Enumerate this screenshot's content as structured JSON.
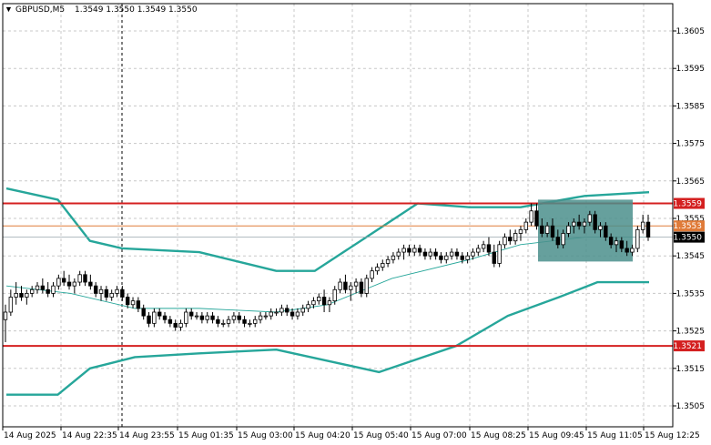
{
  "header": {
    "symbol": "GBPUSD,M5",
    "ohlc": "1.3549 1.3550 1.3549 1.3550",
    "menu_icon": "triangle-down-icon"
  },
  "colors": {
    "background": "#ffffff",
    "grid": "#c8c8c8",
    "up_candle": "#ffffff",
    "down_candle": "#000000",
    "bollinger": "#26a69a",
    "level": "#d42020",
    "orange_level": "#e07b39",
    "box": "#4b8f8c"
  },
  "chart_data": {
    "type": "candlestick",
    "symbol": "GBPUSD",
    "timeframe": "M5",
    "ylim": [
      1.35,
      1.361
    ],
    "y_ticks": [
      "1.3605",
      "1.3595",
      "1.3585",
      "1.3575",
      "1.3565",
      "1.3555",
      "1.3545",
      "1.3535",
      "1.3525",
      "1.3515",
      "1.3505"
    ],
    "x_ticks": [
      "14 Aug 2025",
      "14 Aug 22:35",
      "14 Aug 23:55",
      "15 Aug 01:35",
      "15 Aug 03:00",
      "15 Aug 04:20",
      "15 Aug 05:40",
      "15 Aug 07:00",
      "15 Aug 08:25",
      "15 Aug 09:45",
      "15 Aug 11:05",
      "15 Aug 12:25"
    ],
    "grid": true,
    "horizontal_levels": [
      {
        "price": 1.3559,
        "label": "1.3559",
        "style": "red"
      },
      {
        "price": 1.3553,
        "label": "1.3553",
        "style": "orange"
      },
      {
        "price": 1.3521,
        "label": "1.3521",
        "style": "red"
      }
    ],
    "current_price": {
      "price": 1.355,
      "label": "1.3550"
    },
    "ohlc_approx": [
      [
        1.3528,
        1.3532,
        1.3522,
        1.353
      ],
      [
        1.353,
        1.3536,
        1.3529,
        1.3534
      ],
      [
        1.3534,
        1.3538,
        1.3532,
        1.3535
      ],
      [
        1.3535,
        1.3537,
        1.3533,
        1.3534
      ],
      [
        1.3534,
        1.3536,
        1.3532,
        1.3535
      ],
      [
        1.3535,
        1.3537,
        1.3534,
        1.3536
      ],
      [
        1.3536,
        1.3538,
        1.3535,
        1.3537
      ],
      [
        1.3537,
        1.3539,
        1.3535,
        1.3536
      ],
      [
        1.3536,
        1.3538,
        1.3534,
        1.3535
      ],
      [
        1.3535,
        1.3538,
        1.3534,
        1.3537
      ],
      [
        1.3537,
        1.354,
        1.3536,
        1.3539
      ],
      [
        1.3539,
        1.3541,
        1.3537,
        1.3538
      ],
      [
        1.3538,
        1.354,
        1.3536,
        1.3537
      ],
      [
        1.3537,
        1.3539,
        1.3535,
        1.3538
      ],
      [
        1.3538,
        1.3541,
        1.3537,
        1.354
      ],
      [
        1.354,
        1.3541,
        1.3537,
        1.3538
      ],
      [
        1.3538,
        1.354,
        1.3536,
        1.3537
      ],
      [
        1.3537,
        1.3538,
        1.3534,
        1.3535
      ],
      [
        1.3535,
        1.3537,
        1.3533,
        1.3536
      ],
      [
        1.3536,
        1.3537,
        1.3533,
        1.3534
      ],
      [
        1.3534,
        1.3536,
        1.3533,
        1.3535
      ],
      [
        1.3535,
        1.3537,
        1.3534,
        1.3536
      ],
      [
        1.3536,
        1.3537,
        1.3533,
        1.3534
      ],
      [
        1.3534,
        1.3535,
        1.3531,
        1.3532
      ],
      [
        1.3532,
        1.3534,
        1.3531,
        1.3533
      ],
      [
        1.3533,
        1.3534,
        1.353,
        1.3531
      ],
      [
        1.3531,
        1.3532,
        1.3528,
        1.3529
      ],
      [
        1.3529,
        1.353,
        1.3526,
        1.3527
      ],
      [
        1.3527,
        1.3531,
        1.3526,
        1.353
      ],
      [
        1.353,
        1.3531,
        1.3528,
        1.3529
      ],
      [
        1.3529,
        1.353,
        1.3527,
        1.3528
      ],
      [
        1.3528,
        1.3529,
        1.3526,
        1.3527
      ],
      [
        1.3527,
        1.3528,
        1.3525,
        1.3526
      ],
      [
        1.3526,
        1.3528,
        1.3525,
        1.3527
      ],
      [
        1.3527,
        1.3531,
        1.3526,
        1.353
      ],
      [
        1.353,
        1.3531,
        1.3528,
        1.3529
      ],
      [
        1.3529,
        1.353,
        1.3528,
        1.3529
      ],
      [
        1.3529,
        1.353,
        1.3527,
        1.3528
      ],
      [
        1.3528,
        1.353,
        1.3527,
        1.3529
      ],
      [
        1.3529,
        1.353,
        1.3527,
        1.3528
      ],
      [
        1.3528,
        1.3529,
        1.3526,
        1.3527
      ],
      [
        1.3527,
        1.3528,
        1.3526,
        1.3527
      ],
      [
        1.3527,
        1.3529,
        1.3526,
        1.3528
      ],
      [
        1.3528,
        1.353,
        1.3527,
        1.3529
      ],
      [
        1.3529,
        1.353,
        1.3527,
        1.3528
      ],
      [
        1.3528,
        1.3529,
        1.3526,
        1.3527
      ],
      [
        1.3527,
        1.3528,
        1.3526,
        1.3527
      ],
      [
        1.3527,
        1.3529,
        1.3526,
        1.3528
      ],
      [
        1.3528,
        1.353,
        1.3527,
        1.3529
      ],
      [
        1.3529,
        1.353,
        1.3528,
        1.3529
      ],
      [
        1.3529,
        1.3531,
        1.3528,
        1.353
      ],
      [
        1.353,
        1.3531,
        1.3529,
        1.353
      ],
      [
        1.353,
        1.3532,
        1.3529,
        1.3531
      ],
      [
        1.3531,
        1.3532,
        1.3529,
        1.353
      ],
      [
        1.353,
        1.3531,
        1.3528,
        1.3529
      ],
      [
        1.3529,
        1.3531,
        1.3528,
        1.353
      ],
      [
        1.353,
        1.3532,
        1.3529,
        1.3531
      ],
      [
        1.3531,
        1.3533,
        1.353,
        1.3532
      ],
      [
        1.3532,
        1.3534,
        1.3531,
        1.3533
      ],
      [
        1.3533,
        1.3535,
        1.3532,
        1.3534
      ],
      [
        1.3534,
        1.3536,
        1.353,
        1.3532
      ],
      [
        1.3532,
        1.3534,
        1.353,
        1.3533
      ],
      [
        1.3533,
        1.3537,
        1.3532,
        1.3536
      ],
      [
        1.3536,
        1.3539,
        1.3535,
        1.3538
      ],
      [
        1.3538,
        1.354,
        1.3535,
        1.3536
      ],
      [
        1.3536,
        1.3538,
        1.3533,
        1.3537
      ],
      [
        1.3537,
        1.3539,
        1.3535,
        1.3538
      ],
      [
        1.3538,
        1.3539,
        1.3534,
        1.3535
      ],
      [
        1.3535,
        1.354,
        1.3534,
        1.3539
      ],
      [
        1.3539,
        1.3542,
        1.3538,
        1.3541
      ],
      [
        1.3541,
        1.3543,
        1.354,
        1.3542
      ],
      [
        1.3542,
        1.3544,
        1.3541,
        1.3543
      ],
      [
        1.3543,
        1.3545,
        1.3542,
        1.3544
      ],
      [
        1.3544,
        1.3546,
        1.3543,
        1.3545
      ],
      [
        1.3545,
        1.3547,
        1.3544,
        1.3546
      ],
      [
        1.3546,
        1.3548,
        1.3544,
        1.3547
      ],
      [
        1.3547,
        1.3548,
        1.3545,
        1.3546
      ],
      [
        1.3546,
        1.3548,
        1.3545,
        1.3547
      ],
      [
        1.3547,
        1.3548,
        1.3545,
        1.3546
      ],
      [
        1.3546,
        1.3547,
        1.3544,
        1.3545
      ],
      [
        1.3545,
        1.3547,
        1.3544,
        1.3546
      ],
      [
        1.3546,
        1.3547,
        1.3544,
        1.3545
      ],
      [
        1.3545,
        1.3546,
        1.3543,
        1.3544
      ],
      [
        1.3544,
        1.3546,
        1.3543,
        1.3545
      ],
      [
        1.3545,
        1.3547,
        1.3544,
        1.3546
      ],
      [
        1.3546,
        1.3547,
        1.3544,
        1.3545
      ],
      [
        1.3545,
        1.3546,
        1.3543,
        1.3544
      ],
      [
        1.3544,
        1.3546,
        1.3543,
        1.3545
      ],
      [
        1.3545,
        1.3547,
        1.3544,
        1.3546
      ],
      [
        1.3546,
        1.3548,
        1.3545,
        1.3547
      ],
      [
        1.3547,
        1.3549,
        1.3546,
        1.3548
      ],
      [
        1.3548,
        1.355,
        1.3545,
        1.3546
      ],
      [
        1.3546,
        1.3548,
        1.3542,
        1.3543
      ],
      [
        1.3543,
        1.3549,
        1.3542,
        1.3548
      ],
      [
        1.3548,
        1.3551,
        1.3547,
        1.355
      ],
      [
        1.355,
        1.3552,
        1.3548,
        1.3549
      ],
      [
        1.3549,
        1.3552,
        1.3548,
        1.3551
      ],
      [
        1.3551,
        1.3553,
        1.3549,
        1.3552
      ],
      [
        1.3552,
        1.3555,
        1.3551,
        1.3554
      ],
      [
        1.3554,
        1.3559,
        1.3553,
        1.3557
      ],
      [
        1.3557,
        1.3559,
        1.3552,
        1.3553
      ],
      [
        1.3553,
        1.3555,
        1.355,
        1.3551
      ],
      [
        1.3551,
        1.3554,
        1.355,
        1.3553
      ],
      [
        1.3553,
        1.3555,
        1.3549,
        1.355
      ],
      [
        1.355,
        1.3552,
        1.3547,
        1.3548
      ],
      [
        1.3548,
        1.3552,
        1.3547,
        1.3551
      ],
      [
        1.3551,
        1.3554,
        1.355,
        1.3553
      ],
      [
        1.3553,
        1.3555,
        1.3551,
        1.3554
      ],
      [
        1.3554,
        1.3556,
        1.3552,
        1.3553
      ],
      [
        1.3553,
        1.3555,
        1.3551,
        1.3554
      ],
      [
        1.3554,
        1.3557,
        1.3553,
        1.3556
      ],
      [
        1.3556,
        1.3557,
        1.3551,
        1.3552
      ],
      [
        1.3552,
        1.3554,
        1.355,
        1.3553
      ],
      [
        1.3553,
        1.3554,
        1.3549,
        1.355
      ],
      [
        1.355,
        1.3551,
        1.3547,
        1.3548
      ],
      [
        1.3548,
        1.355,
        1.3546,
        1.3549
      ],
      [
        1.3549,
        1.355,
        1.3546,
        1.3547
      ],
      [
        1.3547,
        1.3549,
        1.3545,
        1.3546
      ],
      [
        1.3546,
        1.3548,
        1.3545,
        1.3547
      ],
      [
        1.3547,
        1.3553,
        1.3546,
        1.3552
      ],
      [
        1.3552,
        1.3556,
        1.3551,
        1.3554
      ],
      [
        1.3554,
        1.3556,
        1.3549,
        1.355
      ]
    ],
    "bollinger_bands_approx": {
      "upper": [
        [
          0,
          1.3563
        ],
        [
          0.08,
          1.356
        ],
        [
          0.13,
          1.3549
        ],
        [
          0.18,
          1.3547
        ],
        [
          0.3,
          1.3546
        ],
        [
          0.42,
          1.3541
        ],
        [
          0.48,
          1.3541
        ],
        [
          0.56,
          1.355
        ],
        [
          0.64,
          1.3559
        ],
        [
          0.72,
          1.3558
        ],
        [
          0.8,
          1.3558
        ],
        [
          0.9,
          1.3561
        ],
        [
          1,
          1.3562
        ]
      ],
      "middle": [
        [
          0,
          1.3537
        ],
        [
          0.1,
          1.3535
        ],
        [
          0.2,
          1.3531
        ],
        [
          0.3,
          1.3531
        ],
        [
          0.42,
          1.353
        ],
        [
          0.5,
          1.3532
        ],
        [
          0.6,
          1.3539
        ],
        [
          0.72,
          1.3544
        ],
        [
          0.8,
          1.3548
        ],
        [
          0.9,
          1.355
        ],
        [
          1,
          1.355
        ]
      ],
      "lower": [
        [
          0,
          1.3508
        ],
        [
          0.08,
          1.3508
        ],
        [
          0.13,
          1.3515
        ],
        [
          0.2,
          1.3518
        ],
        [
          0.3,
          1.3519
        ],
        [
          0.42,
          1.352
        ],
        [
          0.5,
          1.3517
        ],
        [
          0.58,
          1.3514
        ],
        [
          0.7,
          1.3521
        ],
        [
          0.78,
          1.3529
        ],
        [
          0.86,
          1.3534
        ],
        [
          0.92,
          1.3538
        ],
        [
          1,
          1.3538
        ]
      ]
    }
  }
}
